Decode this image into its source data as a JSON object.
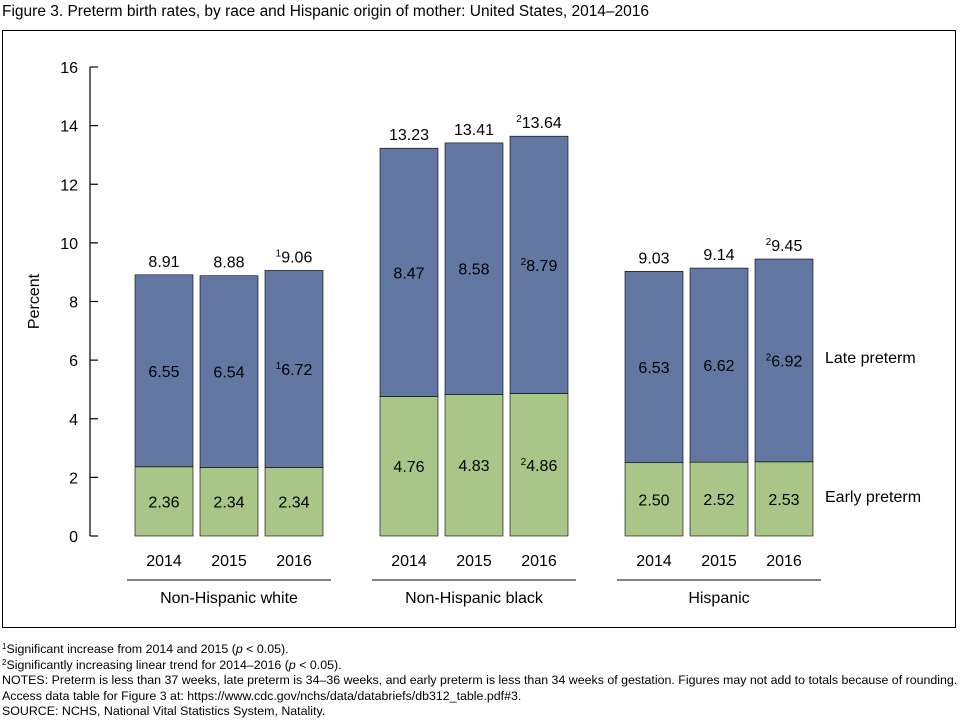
{
  "title": "Figure 3. Preterm birth rates, by race and Hispanic origin of mother: United States, 2014–2016",
  "chart_data": {
    "type": "bar",
    "stacked": true,
    "ylabel": "Percent",
    "ylim": [
      0,
      16
    ],
    "yticks": [
      "0",
      "2",
      "4",
      "6",
      "8",
      "10",
      "12",
      "14",
      "16"
    ],
    "grid": false,
    "colors": {
      "early": "#a9c588",
      "late": "#6278a2"
    },
    "legend": {
      "late": "Late preterm",
      "early": "Early preterm"
    },
    "groups": [
      {
        "name": "Non-Hispanic white",
        "bars": [
          {
            "year": "2014",
            "early": 2.36,
            "late": 6.55,
            "total": 8.91,
            "early_label": "2.36",
            "late_label": "6.55",
            "total_label": "8.91",
            "early_sup": "",
            "late_sup": "",
            "total_sup": ""
          },
          {
            "year": "2015",
            "early": 2.34,
            "late": 6.54,
            "total": 8.88,
            "early_label": "2.34",
            "late_label": "6.54",
            "total_label": "8.88",
            "early_sup": "",
            "late_sup": "",
            "total_sup": ""
          },
          {
            "year": "2016",
            "early": 2.34,
            "late": 6.72,
            "total": 9.06,
            "early_label": "2.34",
            "late_label": "6.72",
            "total_label": "9.06",
            "early_sup": "",
            "late_sup": "1",
            "total_sup": "1"
          }
        ]
      },
      {
        "name": "Non-Hispanic black",
        "bars": [
          {
            "year": "2014",
            "early": 4.76,
            "late": 8.47,
            "total": 13.23,
            "early_label": "4.76",
            "late_label": "8.47",
            "total_label": "13.23",
            "early_sup": "",
            "late_sup": "",
            "total_sup": ""
          },
          {
            "year": "2015",
            "early": 4.83,
            "late": 8.58,
            "total": 13.41,
            "early_label": "4.83",
            "late_label": "8.58",
            "total_label": "13.41",
            "early_sup": "",
            "late_sup": "",
            "total_sup": ""
          },
          {
            "year": "2016",
            "early": 4.86,
            "late": 8.79,
            "total": 13.64,
            "early_label": "4.86",
            "late_label": "8.79",
            "total_label": "13.64",
            "early_sup": "2",
            "late_sup": "2",
            "total_sup": "2"
          }
        ]
      },
      {
        "name": "Hispanic",
        "bars": [
          {
            "year": "2014",
            "early": 2.5,
            "late": 6.53,
            "total": 9.03,
            "early_label": "2.50",
            "late_label": "6.53",
            "total_label": "9.03",
            "early_sup": "",
            "late_sup": "",
            "total_sup": ""
          },
          {
            "year": "2015",
            "early": 2.52,
            "late": 6.62,
            "total": 9.14,
            "early_label": "2.52",
            "late_label": "6.62",
            "total_label": "9.14",
            "early_sup": "",
            "late_sup": "",
            "total_sup": ""
          },
          {
            "year": "2016",
            "early": 2.53,
            "late": 6.92,
            "total": 9.45,
            "early_label": "2.53",
            "late_label": "6.92",
            "total_label": "9.45",
            "early_sup": "",
            "late_sup": "2",
            "total_sup": "2"
          }
        ]
      }
    ]
  },
  "notes": {
    "note1_sup": "1",
    "note1_a": "Significant increase from 2014 and 2015 (",
    "note1_p": "p",
    "note1_b": " < 0.05).",
    "note2_sup": "2",
    "note2_a": "Significantly increasing linear trend for 2014–2016 (",
    "note2_p": "p",
    "note2_b": " < 0.05).",
    "notes_text": "NOTES: Preterm is less than 37 weeks, late preterm is 34–36 weeks, and early preterm is less than 34 weeks of gestation. Figures may not add to totals because of rounding. Access data table for Figure 3 at: https://www.cdc.gov/nchs/data/databriefs/db312_table.pdf#3.",
    "source": "SOURCE: NCHS, National Vital Statistics System, Natality."
  }
}
